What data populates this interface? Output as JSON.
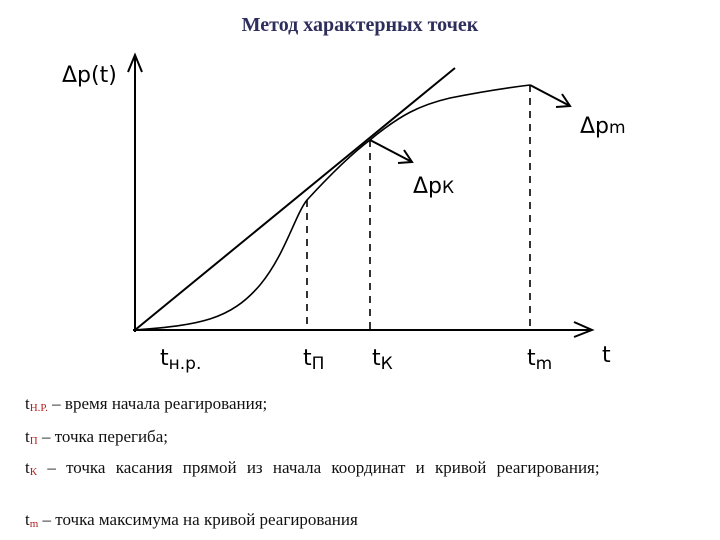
{
  "title": "Метод характерных точек",
  "diagram": {
    "y_axis_label": "Δp(t)",
    "x_axis_label": "t",
    "points": [
      {
        "symbol": "t",
        "sub": "н.р."
      },
      {
        "symbol": "t",
        "sub": "П"
      },
      {
        "symbol": "t",
        "sub": "К"
      },
      {
        "symbol": "t",
        "sub": "m"
      }
    ],
    "tangent_label": {
      "symbol": "Δp",
      "sub": "К"
    },
    "max_label": {
      "symbol": "Δp",
      "sub": "m"
    }
  },
  "legend": [
    {
      "symbol": "t",
      "sub": "Н.Р.",
      "text": "– время начала реагирования;"
    },
    {
      "symbol": "t",
      "sub": "П",
      "text": "– точка перегиба;"
    },
    {
      "symbol": "t",
      "sub": "К",
      "text": "– точка касания прямой из начала координат и кривой реагирования;"
    },
    {
      "symbol": "t",
      "sub": "m",
      "text": "– точка максимума на кривой реагирования"
    }
  ]
}
